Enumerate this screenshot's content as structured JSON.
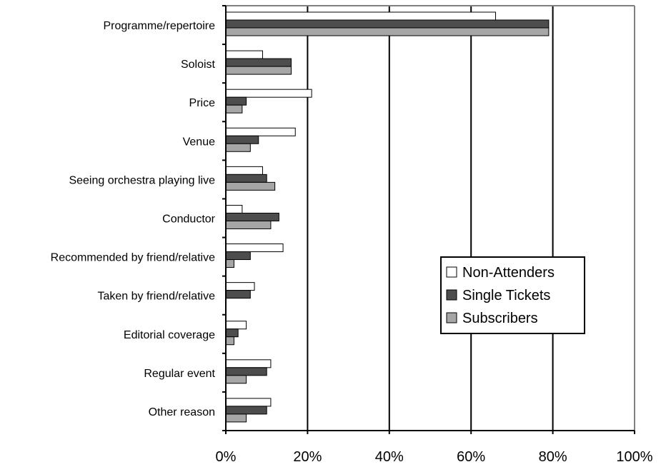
{
  "chart_data": {
    "type": "bar",
    "orientation": "horizontal",
    "categories": [
      "Programme/repertoire",
      "Soloist",
      "Price",
      "Venue",
      "Seeing orchestra playing live",
      "Conductor",
      "Recommended by friend/relative",
      "Taken by friend/relative",
      "Editorial coverage",
      "Regular event",
      "Other reason"
    ],
    "series": [
      {
        "name": "Non-Attenders",
        "color": "#ffffff",
        "values": [
          66,
          9,
          21,
          17,
          9,
          4,
          14,
          7,
          5,
          11,
          11
        ]
      },
      {
        "name": "Single Tickets",
        "color": "#4d4d4d",
        "values": [
          79,
          16,
          5,
          8,
          10,
          13,
          6,
          6,
          3,
          10,
          10
        ]
      },
      {
        "name": "Subscribers",
        "color": "#a6a6a6",
        "values": [
          79,
          16,
          4,
          6,
          12,
          11,
          2,
          0,
          2,
          5,
          5
        ]
      }
    ],
    "xlim": [
      0,
      100
    ],
    "xticks": [
      "0%",
      "20%",
      "40%",
      "60%",
      "80%",
      "100%"
    ],
    "xtick_values": [
      0,
      20,
      40,
      60,
      80,
      100
    ],
    "grid": true,
    "legend_position": "right"
  }
}
